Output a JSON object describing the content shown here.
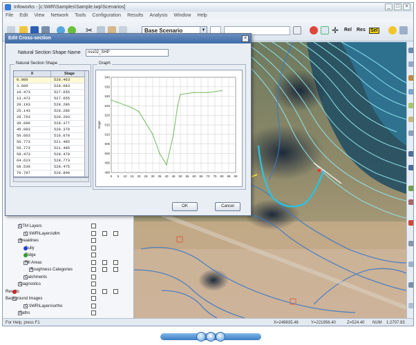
{
  "window": {
    "title": "Infoworks - [c:\\IWR\\Samples\\Sample.iwp\\Scenarios]",
    "controls": [
      "_",
      "□",
      "×"
    ]
  },
  "menu": [
    "File",
    "Edit",
    "View",
    "Network",
    "Tools",
    "Configuration",
    "Results",
    "Analysis",
    "Window",
    "Help"
  ],
  "toolbar": {
    "scenario_value": "Base Scenario",
    "label_a": "Rel",
    "label_b": "Res",
    "label_c": "Sel"
  },
  "dialog": {
    "title": "Edit Cross-section",
    "close_label": "×",
    "shape_name_label": "Natural Section Shape Name",
    "shape_name_value": "nss02_SHP",
    "table_group_label": "Natural Section Shape",
    "graph_group_label": "Graph",
    "ok_label": "OK",
    "cancel_label": "Cancel"
  },
  "table": {
    "columns": [
      "X",
      "Stage"
    ],
    "rows": [
      [
        "0.000",
        "528.463"
      ],
      [
        "3.680",
        "528.083"
      ],
      [
        "10.473",
        "527.655"
      ],
      [
        "13.473",
        "527.655"
      ],
      [
        "20.193",
        "528.286"
      ],
      [
        "25.143",
        "528.286"
      ],
      [
        "28.763",
        "528.203"
      ],
      [
        "39.096",
        "528.377"
      ],
      [
        "45.093",
        "528.370"
      ],
      [
        "50.663",
        "516.070"
      ],
      [
        "50.773",
        "521.485"
      ],
      [
        "56.773",
        "521.485"
      ],
      [
        "58.473",
        "528.470"
      ],
      [
        "64.623",
        "528.773"
      ],
      [
        "68.530",
        "528.475"
      ],
      [
        "70.797",
        "528.800"
      ]
    ]
  },
  "chart_data": {
    "type": "line",
    "title": "",
    "xlabel": "",
    "ylabel": "Stage",
    "xlim": [
      0,
      90
    ],
    "ylim": [
      490,
      540
    ],
    "xticks": [
      "0",
      "5",
      "10",
      "15",
      "20",
      "25",
      "30",
      "35",
      "40",
      "45",
      "50",
      "55",
      "60",
      "65",
      "70",
      "75",
      "80",
      "85",
      "90"
    ],
    "yticks": [
      "490",
      "495",
      "500",
      "505",
      "510",
      "515",
      "520",
      "525",
      "530",
      "535",
      "540"
    ],
    "x": [
      0,
      4,
      15,
      20,
      30,
      35,
      40,
      45,
      48,
      50,
      60,
      70,
      80
    ],
    "y": [
      528,
      527,
      524,
      522,
      510,
      500,
      494,
      510,
      525,
      531,
      532,
      532,
      533
    ],
    "grid": true
  },
  "tree": [
    {
      "label": "DTM Layers",
      "level": 1
    },
    {
      "label": "C:\\IWR\\Layers\\dtm",
      "level": 2
    },
    {
      "label": "Breaklines",
      "level": 1
    },
    {
      "label": "Gully",
      "level": 2,
      "color": "#1f3fd8"
    },
    {
      "label": "Ridge",
      "level": 2,
      "color": "#2aa02a"
    },
    {
      "label": "Fill Areas",
      "level": 2
    },
    {
      "label": "Roughness Categories",
      "level": 3
    },
    {
      "label": "Catchments",
      "level": 2
    },
    {
      "label": "Diagnostics",
      "level": 1
    },
    {
      "label": "Results",
      "level": 0,
      "color": "#cc2222"
    },
    {
      "label": "Background Images",
      "level": 0
    },
    {
      "label": "C:\\IWR\\Layers\\ortho",
      "level": 2
    },
    {
      "label": "Paths",
      "level": 1
    }
  ],
  "status": {
    "help_text": "For Help, press F1",
    "coord_x": "X=249835.46",
    "coord_y": "Y=221956.40",
    "coord_z": "Z=524.40",
    "mode": "NUM",
    "scale": "1:2707.93"
  },
  "bottom_nav": [
    "‹",
    "■",
    "›"
  ],
  "colors": {
    "contour": "#8fe7f0",
    "blue_contour": "#3a78c8",
    "profile_line": "#7fbf6a"
  }
}
